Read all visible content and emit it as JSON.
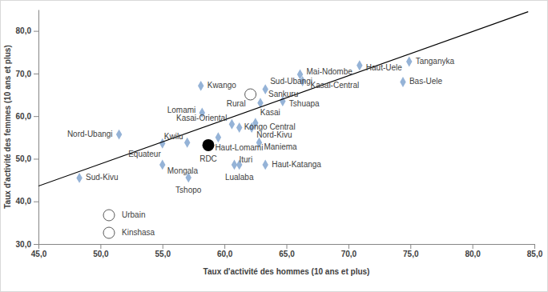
{
  "chart_data": {
    "type": "scatter",
    "x_label": "Taux d'activité des hommes (10 ans et plus)",
    "y_label": "Taux d'activité des femmes (10 ans et plus)",
    "xlim": [
      45,
      85
    ],
    "xticks": [
      {
        "value": 45,
        "label": "45,0"
      },
      {
        "value": 50,
        "label": "50,0"
      },
      {
        "value": 55,
        "label": "55,0"
      },
      {
        "value": 60,
        "label": "60,0"
      },
      {
        "value": 65,
        "label": "65,0"
      },
      {
        "value": 70,
        "label": "70,0"
      },
      {
        "value": 75,
        "label": "75,0"
      },
      {
        "value": 80,
        "label": "80,0"
      },
      {
        "value": 85,
        "label": "85,0"
      }
    ],
    "ylim": [
      30,
      85
    ],
    "yticks": [
      {
        "value": 30,
        "label": "30,0"
      },
      {
        "value": 40,
        "label": "40,0"
      },
      {
        "value": 50,
        "label": "50,0"
      },
      {
        "value": 60,
        "label": "60,0"
      },
      {
        "value": 70,
        "label": "70,0"
      },
      {
        "value": 80,
        "label": "80,0"
      }
    ],
    "legend": "bottom-left",
    "series": [
      {
        "type": "scatter",
        "marker": "diamond",
        "color": "#95b3d7",
        "labels": [
          "Tanganyka",
          "Haut-Uele",
          "Bas-Uele",
          "Mai-Ndombe",
          "Kasai-Central",
          "Kwango",
          "Sud-Ubangi",
          "Sankuru",
          "Tshuapa",
          "Lomami",
          "Kasai-Oriental",
          "Kasai",
          "Kongo Central",
          "Nord-Kivu",
          "Haut-Lomami",
          "Maniema",
          "Nord-Ubangi",
          "Kwilu",
          "Equateur",
          "Mongala",
          "Tshopo",
          "Ituri",
          "Lualaba",
          "Haut-Katanga",
          "Sud-Kivu"
        ],
        "x": [
          74.9,
          70.9,
          74.4,
          66.1,
          66.3,
          58.1,
          63.3,
          62.9,
          64.7,
          58.2,
          60.6,
          62.5,
          61.2,
          62.2,
          59.5,
          62.8,
          51.5,
          57.0,
          55.0,
          55.0,
          57.1,
          60.8,
          61.2,
          63.3,
          48.3
        ],
        "values": [
          72.8,
          71.9,
          68.0,
          69.8,
          68.2,
          67.1,
          66.3,
          63.1,
          63.5,
          60.8,
          58.1,
          58.4,
          57.3,
          57.3,
          55.0,
          53.8,
          55.7,
          53.8,
          53.6,
          48.6,
          45.6,
          48.6,
          48.6,
          48.6,
          45.5
        ]
      },
      {
        "type": "scatter",
        "marker": "circle",
        "color": "#000000",
        "labels": [
          "RDC"
        ],
        "x": [
          58.7
        ],
        "values": [
          53.2
        ]
      },
      {
        "type": "scatter",
        "marker": "open-circle",
        "color": "#ffffff",
        "labels": [
          "Rural"
        ],
        "x": [
          62.1
        ],
        "values": [
          65.1
        ]
      },
      {
        "type": "line",
        "line_style": "solid",
        "color": "#000000",
        "x": [
          45,
          84.5
        ],
        "values": [
          43.6,
          84.5
        ]
      },
      {
        "name": "Urbain",
        "marker": "open-circle",
        "color": "#ffffff"
      },
      {
        "name": "Kinshasa",
        "marker": "open-circle",
        "color": "#ffffff"
      }
    ]
  }
}
